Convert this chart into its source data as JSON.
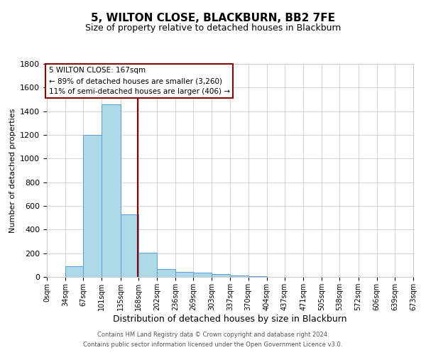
{
  "title": "5, WILTON CLOSE, BLACKBURN, BB2 7FE",
  "subtitle": "Size of property relative to detached houses in Blackburn",
  "xlabel": "Distribution of detached houses by size in Blackburn",
  "ylabel": "Number of detached properties",
  "footnote1": "Contains HM Land Registry data © Crown copyright and database right 2024.",
  "footnote2": "Contains public sector information licensed under the Open Government Licence v3.0.",
  "property_size": 167,
  "annotation_line1": "5 WILTON CLOSE: 167sqm",
  "annotation_line2": "← 89% of detached houses are smaller (3,260)",
  "annotation_line3": "11% of semi-detached houses are larger (406) →",
  "bar_edges": [
    0,
    34,
    67,
    101,
    135,
    168,
    202,
    236,
    269,
    303,
    337,
    370,
    404,
    437,
    471,
    505,
    538,
    572,
    606,
    639,
    673
  ],
  "bar_heights": [
    0,
    90,
    1200,
    1460,
    530,
    205,
    65,
    45,
    35,
    25,
    15,
    8,
    3,
    0,
    0,
    0,
    0,
    0,
    0,
    0
  ],
  "bar_color": "#add8e6",
  "bar_edge_color": "#5b9bd5",
  "vline_color": "#8b0000",
  "vline_x": 167,
  "ylim": [
    0,
    1800
  ],
  "yticks": [
    0,
    200,
    400,
    600,
    800,
    1000,
    1200,
    1400,
    1600,
    1800
  ],
  "xtick_labels": [
    "0sqm",
    "34sqm",
    "67sqm",
    "101sqm",
    "135sqm",
    "168sqm",
    "202sqm",
    "236sqm",
    "269sqm",
    "303sqm",
    "337sqm",
    "370sqm",
    "404sqm",
    "437sqm",
    "471sqm",
    "505sqm",
    "538sqm",
    "572sqm",
    "606sqm",
    "639sqm",
    "673sqm"
  ],
  "grid_color": "#cccccc",
  "background_color": "#ffffff",
  "annotation_box_color": "#ffffff",
  "annotation_box_edgecolor": "#8b0000",
  "title_fontsize": 11,
  "subtitle_fontsize": 9,
  "ylabel_fontsize": 8,
  "xlabel_fontsize": 9,
  "ytick_fontsize": 8,
  "xtick_fontsize": 7,
  "annotation_fontsize": 7.5,
  "footnote_fontsize": 6
}
